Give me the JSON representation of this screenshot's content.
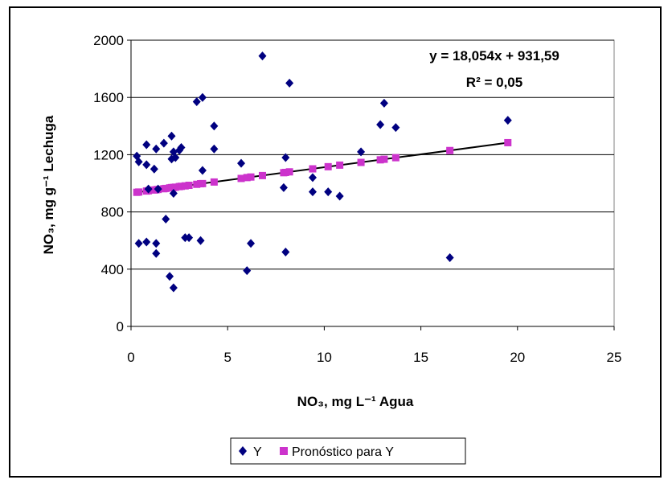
{
  "chart_data": {
    "type": "scatter",
    "xlabel": "NO₃, mg L⁻¹ Agua",
    "ylabel": "NO₃, mg g⁻¹ Lechuga",
    "xlim": [
      0,
      25
    ],
    "ylim": [
      0,
      2000
    ],
    "x_ticks": [
      "0",
      "5",
      "10",
      "15",
      "20",
      "25"
    ],
    "y_ticks": [
      "0",
      "400",
      "800",
      "1200",
      "1600",
      "2000"
    ],
    "grid": "horizontal",
    "legend_position": "bottom",
    "annotations": {
      "equation": "y = 18,054x + 931,59",
      "r_squared": "R² = 0,05"
    },
    "trendline": {
      "slope": 18.054,
      "intercept": 931.59
    },
    "series": [
      {
        "name": "Y",
        "marker": "diamond",
        "color": "#000080",
        "points": [
          [
            0.3,
            1190
          ],
          [
            0.4,
            1150
          ],
          [
            0.4,
            580
          ],
          [
            0.8,
            1270
          ],
          [
            0.8,
            1130
          ],
          [
            0.8,
            590
          ],
          [
            0.9,
            960
          ],
          [
            1.2,
            1100
          ],
          [
            1.3,
            1240
          ],
          [
            1.3,
            580
          ],
          [
            1.3,
            510
          ],
          [
            1.4,
            960
          ],
          [
            1.7,
            1280
          ],
          [
            1.8,
            750
          ],
          [
            2.0,
            350
          ],
          [
            2.1,
            1170
          ],
          [
            2.1,
            1330
          ],
          [
            2.2,
            1220
          ],
          [
            2.2,
            930
          ],
          [
            2.2,
            270
          ],
          [
            2.3,
            1180
          ],
          [
            2.5,
            1230
          ],
          [
            2.6,
            1250
          ],
          [
            2.8,
            620
          ],
          [
            3.0,
            620
          ],
          [
            3.4,
            1570
          ],
          [
            3.6,
            600
          ],
          [
            3.7,
            1600
          ],
          [
            3.7,
            1090
          ],
          [
            4.3,
            1400
          ],
          [
            4.3,
            1240
          ],
          [
            5.7,
            1140
          ],
          [
            6.0,
            390
          ],
          [
            6.2,
            580
          ],
          [
            6.8,
            1890
          ],
          [
            7.9,
            970
          ],
          [
            8.0,
            1180
          ],
          [
            8.0,
            520
          ],
          [
            8.2,
            1700
          ],
          [
            9.4,
            1040
          ],
          [
            9.4,
            940
          ],
          [
            10.2,
            940
          ],
          [
            10.8,
            910
          ],
          [
            11.9,
            1220
          ],
          [
            12.9,
            1410
          ],
          [
            13.1,
            1560
          ],
          [
            13.7,
            1390
          ],
          [
            16.5,
            480
          ],
          [
            19.5,
            1440
          ]
        ]
      },
      {
        "name": "Pronóstico para Y",
        "marker": "square",
        "color": "#cc33cc",
        "points": [
          [
            0.3,
            937
          ],
          [
            0.4,
            939
          ],
          [
            0.8,
            946
          ],
          [
            0.9,
            948
          ],
          [
            1.2,
            953
          ],
          [
            1.3,
            955
          ],
          [
            1.4,
            957
          ],
          [
            1.7,
            962
          ],
          [
            1.8,
            964
          ],
          [
            2.0,
            968
          ],
          [
            2.1,
            970
          ],
          [
            2.2,
            971
          ],
          [
            2.3,
            973
          ],
          [
            2.5,
            977
          ],
          [
            2.6,
            979
          ],
          [
            2.8,
            982
          ],
          [
            3.0,
            986
          ],
          [
            3.4,
            993
          ],
          [
            3.6,
            997
          ],
          [
            3.7,
            998
          ],
          [
            4.3,
            1009
          ],
          [
            5.7,
            1034
          ],
          [
            6.0,
            1040
          ],
          [
            6.2,
            1044
          ],
          [
            6.8,
            1054
          ],
          [
            7.9,
            1074
          ],
          [
            8.0,
            1076
          ],
          [
            8.2,
            1080
          ],
          [
            9.4,
            1101
          ],
          [
            10.2,
            1116
          ],
          [
            10.8,
            1127
          ],
          [
            11.9,
            1146
          ],
          [
            12.9,
            1164
          ],
          [
            13.1,
            1168
          ],
          [
            13.7,
            1179
          ],
          [
            16.5,
            1229
          ],
          [
            19.5,
            1284
          ]
        ]
      }
    ]
  }
}
